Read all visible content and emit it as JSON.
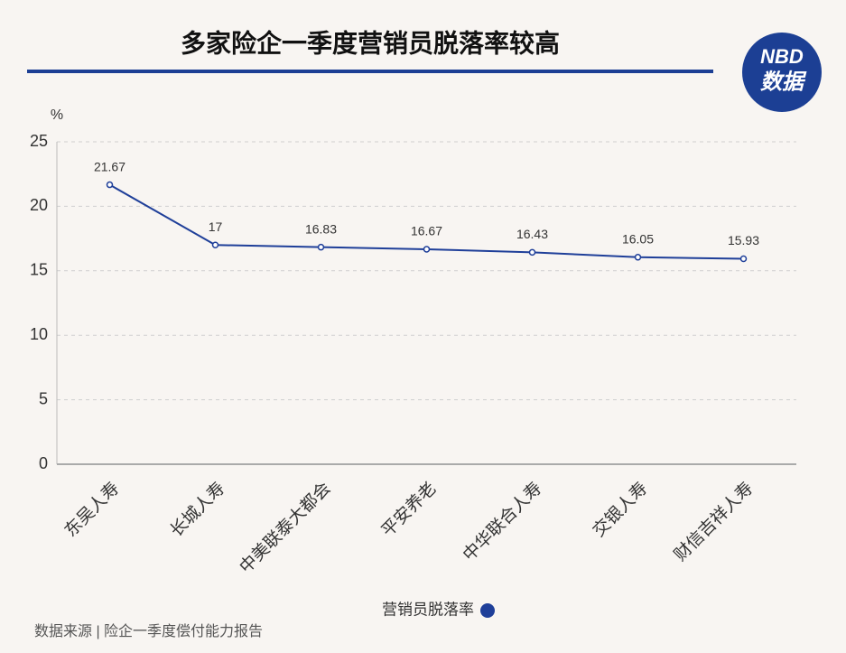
{
  "chart_data": {
    "type": "line",
    "title": "多家险企一季度营销员脱落率较高",
    "y_label": "%",
    "categories": [
      "东吴人寿",
      "长城人寿",
      "中美联泰大都会",
      "平安养老",
      "中华联合人寿",
      "交银人寿",
      "财信吉祥人寿"
    ],
    "series": [
      {
        "name": "营销员脱落率",
        "color": "#1f3f99",
        "values": [
          21.67,
          17,
          16.83,
          16.67,
          16.43,
          16.05,
          15.93
        ]
      }
    ],
    "ylim": [
      0,
      25
    ],
    "yticks": [
      0,
      5,
      10,
      15,
      20,
      25
    ],
    "grid": true,
    "legend": "bottom"
  },
  "logo": {
    "top": "NBD",
    "bottom": "数据"
  },
  "source": "数据来源 | 险企一季度偿付能力报告"
}
